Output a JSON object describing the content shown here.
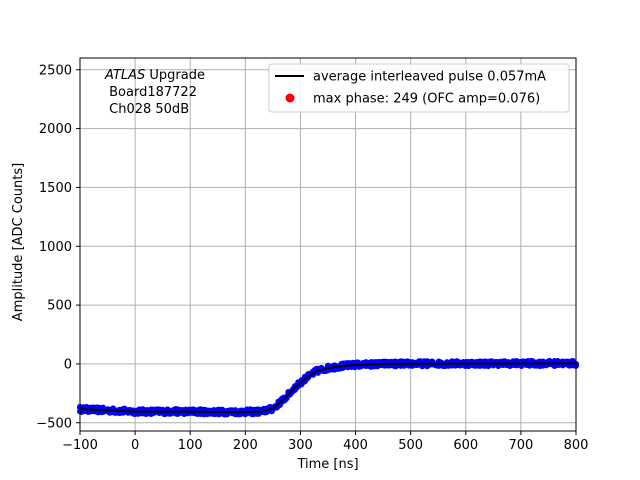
{
  "chart_data": {
    "type": "scatter",
    "xlabel": "Time [ns]",
    "ylabel": "Amplitude [ADC Counts]",
    "xlim": [
      -100,
      800
    ],
    "ylim": [
      -570,
      2600
    ],
    "grid": true,
    "legend_position": "top-right",
    "x_ticks": [
      -100,
      0,
      100,
      200,
      300,
      400,
      500,
      600,
      700,
      800
    ],
    "y_ticks": [
      -500,
      0,
      500,
      1000,
      1500,
      2000,
      2500
    ],
    "annotation": {
      "title_italic": "ATLAS",
      "title_rest": " Upgrade",
      "line2": " Board187722",
      "line3": " Ch028 50dB"
    },
    "series": [
      {
        "name": "average interleaved pulse 0.057mA",
        "kind": "line",
        "color": "#000000",
        "x": [
          -100,
          -50,
          0,
          50,
          100,
          150,
          200,
          230,
          250,
          270,
          290,
          310,
          330,
          350,
          370,
          400,
          450,
          500,
          600,
          700,
          800
        ],
        "y": [
          -385,
          -395,
          -405,
          -405,
          -405,
          -408,
          -408,
          -405,
          -380,
          -300,
          -200,
          -120,
          -60,
          -35,
          -20,
          -8,
          0,
          2,
          3,
          4,
          5
        ]
      },
      {
        "name": "max phase: 249 (OFC amp=0.076)",
        "kind": "marker",
        "color": "#ff0000",
        "x": [],
        "y": []
      }
    ],
    "samples": {
      "color": "#0000ff",
      "x_start": -100,
      "x_end": 800,
      "x_step": 3,
      "spread": 22
    }
  }
}
